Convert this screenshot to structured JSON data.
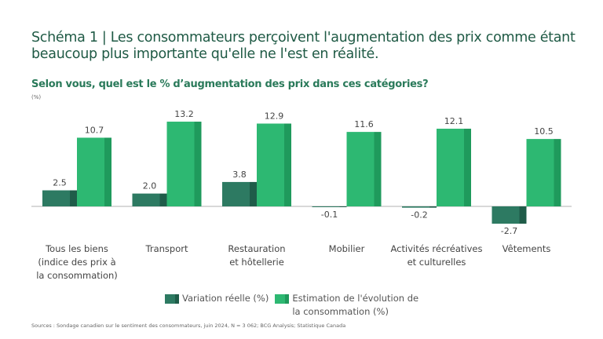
{
  "title": "Schéma 1 | Les consommateurs perçoivent l'augmentation des prix comme étant beaucoup plus importante qu'elle ne l'est en réalité.",
  "sources": "Sources : Sondage canadien sur le sentiment des consommateurs, juin 2024, N = 3 062; BCG Analysis; Statistique Canada",
  "chart_data": {
    "type": "bar",
    "title": "Selon vous, quel est le % d’augmentation des prix dans ces catégories?",
    "unit": "(%)",
    "categories": [
      "Tous les biens\n(indice des prix à\nla consommation)",
      "Transport",
      "Restauration\net hôtellerie",
      "Mobilier",
      "Activités récréatives\net culturelles",
      "Vêtements"
    ],
    "series": [
      {
        "name": "Variation réelle (%)",
        "values": [
          2.5,
          2.0,
          3.8,
          -0.1,
          -0.2,
          -2.7
        ],
        "labels": [
          "2.5",
          "2.0",
          "3.8",
          "-0.1",
          "-0.2",
          "-2.7"
        ],
        "color": "#2d7a62",
        "side_color": "#1f5c49"
      },
      {
        "name": "Estimation de l'évolution de la consommation  (%)",
        "values": [
          10.7,
          13.2,
          12.9,
          11.6,
          12.1,
          10.5
        ],
        "labels": [
          "10.7",
          "13.2",
          "12.9",
          "11.6",
          "12.1",
          "10.5"
        ],
        "color": "#2db872",
        "side_color": "#1f9a5c"
      }
    ],
    "legend_position": "bottom",
    "grid": false
  }
}
